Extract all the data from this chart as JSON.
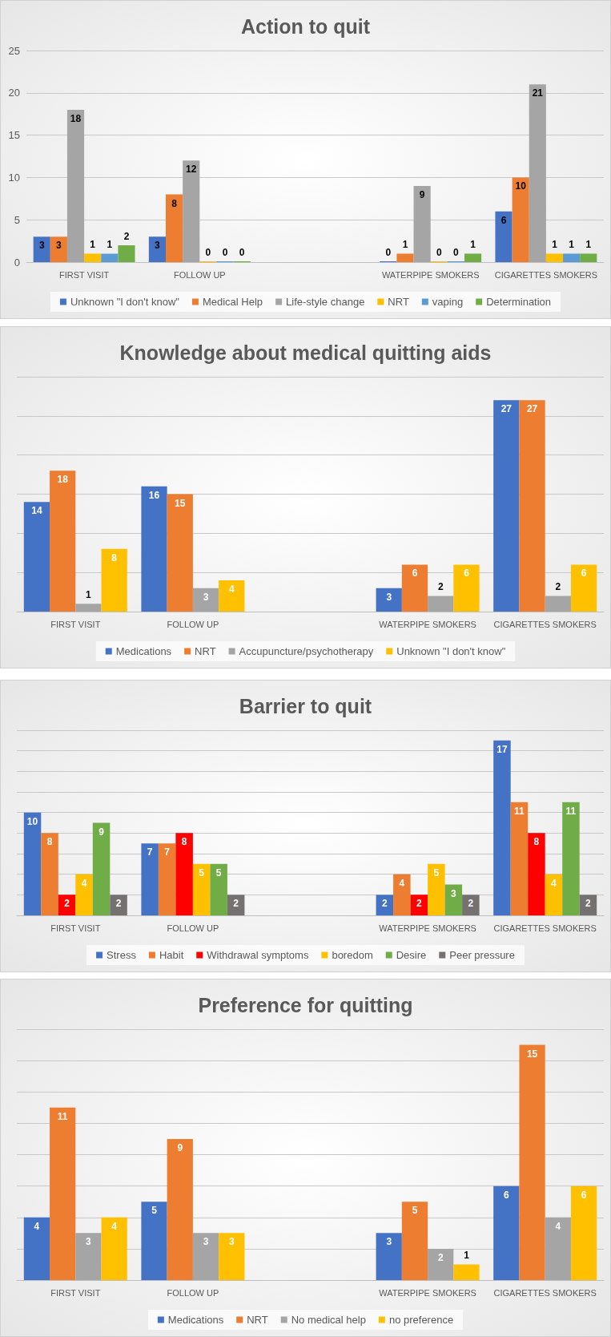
{
  "chart_data": [
    {
      "type": "bar",
      "title": "Action to quit",
      "categories": [
        "FIRST VISIT",
        "FOLLOW UP",
        null,
        "WATERPIPE SMOKERS",
        "CIGARETTES SMOKERS"
      ],
      "ylim": [
        0,
        25
      ],
      "yticks": [
        0,
        5,
        10,
        15,
        20,
        25
      ],
      "grid": "y",
      "legend": "bottom",
      "data_labels": true,
      "series": [
        {
          "name": "Unknown \"I don't know\"",
          "color": "#4472c4",
          "values": [
            3,
            3,
            null,
            0,
            6
          ]
        },
        {
          "name": "Medical Help",
          "color": "#ed7d31",
          "values": [
            3,
            8,
            null,
            1,
            10
          ]
        },
        {
          "name": "Life-style change",
          "color": "#a5a5a5",
          "values": [
            18,
            12,
            null,
            9,
            21
          ]
        },
        {
          "name": "NRT",
          "color": "#ffc000",
          "values": [
            1,
            0,
            null,
            0,
            1
          ]
        },
        {
          "name": "vaping",
          "color": "#5b9bd5",
          "values": [
            1,
            0,
            null,
            0,
            1
          ]
        },
        {
          "name": "Determination",
          "color": "#70ad47",
          "values": [
            2,
            0,
            null,
            1,
            1
          ]
        }
      ]
    },
    {
      "type": "bar",
      "title": "Knowledge about medical quitting aids",
      "categories": [
        "FIRST VISIT",
        "FOLLOW UP",
        null,
        "WATERPIPE SMOKERS",
        "CIGARETTES SMOKERS"
      ],
      "ylim": [
        0,
        30
      ],
      "yticks": [
        {
          "value": 0,
          "label": null
        },
        {
          "value": 5,
          "label": null
        },
        {
          "value": 10,
          "label": null
        },
        {
          "value": 15,
          "label": null
        },
        {
          "value": 20,
          "label": null
        },
        {
          "value": 25,
          "label": null
        },
        {
          "value": 30,
          "label": null
        }
      ],
      "tick_labels": "x",
      "grid": "y",
      "legend": "bottom",
      "data_labels": true,
      "series": [
        {
          "name": "Medications",
          "color": "#4472c4",
          "values": [
            14,
            16,
            null,
            3,
            27
          ]
        },
        {
          "name": "NRT",
          "color": "#ed7d31",
          "values": [
            18,
            15,
            null,
            6,
            27
          ]
        },
        {
          "name": "Accupuncture/psychotherapy",
          "color": "#a5a5a5",
          "values": [
            1,
            3,
            null,
            2,
            2
          ]
        },
        {
          "name": "Unknown \"I don't know\"",
          "color": "#ffc000",
          "values": [
            8,
            4,
            null,
            6,
            6
          ]
        }
      ]
    },
    {
      "type": "bar",
      "title": "Barrier to quit",
      "categories": [
        "FIRST VISIT",
        "FOLLOW UP",
        null,
        "WATERPIPE SMOKERS",
        "CIGARETTES SMOKERS"
      ],
      "ylim": [
        0,
        18
      ],
      "yticks": [
        {
          "value": 0,
          "label": null
        },
        {
          "value": 2,
          "label": null
        },
        {
          "value": 4,
          "label": null
        },
        {
          "value": 6,
          "label": null
        },
        {
          "value": 8,
          "label": null
        },
        {
          "value": 10,
          "label": null
        },
        {
          "value": 12,
          "label": null
        },
        {
          "value": 14,
          "label": null
        },
        {
          "value": 16,
          "label": null
        },
        {
          "value": 18,
          "label": null
        }
      ],
      "tick_labels": "x",
      "grid": "y",
      "legend": "bottom",
      "data_labels": true,
      "series": [
        {
          "name": "Stress",
          "color": "#4472c4",
          "values": [
            10,
            7,
            null,
            2,
            17
          ]
        },
        {
          "name": "Habit",
          "color": "#ed7d31",
          "values": [
            8,
            7,
            null,
            4,
            11
          ]
        },
        {
          "name": "Withdrawal symptoms",
          "color": "#ff0000",
          "values": [
            2,
            8,
            null,
            2,
            8
          ]
        },
        {
          "name": "boredom",
          "color": "#ffc000",
          "values": [
            4,
            5,
            null,
            5,
            4
          ]
        },
        {
          "name": "Desire",
          "color": "#70ad47",
          "values": [
            9,
            5,
            null,
            3,
            11
          ]
        },
        {
          "name": "Peer pressure",
          "color": "#767171",
          "values": [
            2,
            2,
            null,
            2,
            2
          ]
        }
      ]
    },
    {
      "type": "bar",
      "title": "Preference for quitting",
      "categories": [
        "FIRST VISIT",
        "FOLLOW UP",
        null,
        "WATERPIPE SMOKERS",
        "CIGARETTES SMOKERS"
      ],
      "ylim": [
        0,
        16
      ],
      "yticks": [
        {
          "value": 0,
          "label": null
        },
        {
          "value": 2,
          "label": null
        },
        {
          "value": 4,
          "label": null
        },
        {
          "value": 6,
          "label": null
        },
        {
          "value": 8,
          "label": null
        },
        {
          "value": 10,
          "label": null
        },
        {
          "value": 12,
          "label": null
        },
        {
          "value": 14,
          "label": null
        },
        {
          "value": 16,
          "label": null
        }
      ],
      "tick_labels": "x",
      "grid": "y",
      "legend": "bottom",
      "data_labels": true,
      "series": [
        {
          "name": "Medications",
          "color": "#4472c4",
          "values": [
            4,
            5,
            null,
            3,
            6
          ]
        },
        {
          "name": "NRT",
          "color": "#ed7d31",
          "values": [
            11,
            9,
            null,
            5,
            15
          ]
        },
        {
          "name": "No medical help",
          "color": "#a5a5a5",
          "values": [
            3,
            3,
            null,
            2,
            4
          ]
        },
        {
          "name": "no preference",
          "color": "#ffc000",
          "values": [
            4,
            3,
            null,
            1,
            6
          ]
        }
      ]
    }
  ]
}
